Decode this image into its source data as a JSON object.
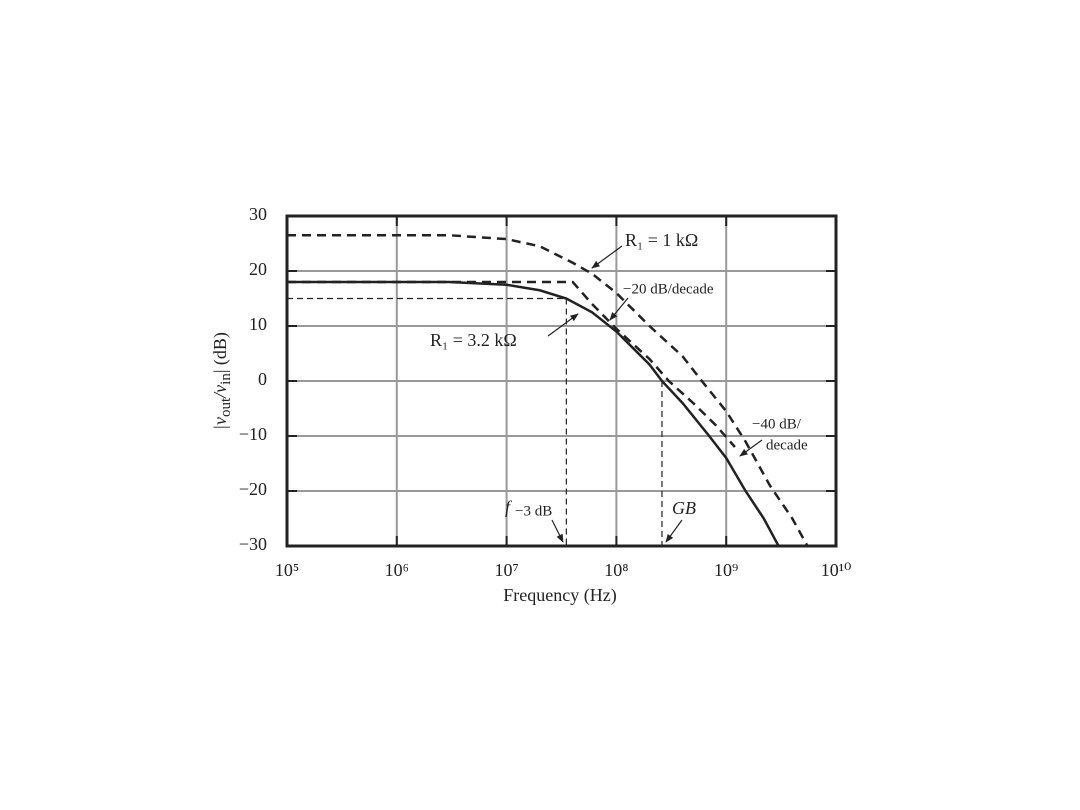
{
  "chart_data": {
    "type": "line",
    "xlabel": "Frequency (Hz)",
    "ylabel_parts": [
      "|v",
      "out",
      "/v",
      "in",
      "|  (dB)"
    ],
    "xscale": "log",
    "xlim": [
      100000,
      10000000000
    ],
    "xticks": [
      {
        "value": 100000,
        "label": "10⁵"
      },
      {
        "value": 1000000,
        "label": "10⁶"
      },
      {
        "value": 10000000,
        "label": "10⁷"
      },
      {
        "value": 100000000,
        "label": "10⁸"
      },
      {
        "value": 1000000000,
        "label": "10⁹"
      },
      {
        "value": 10000000000,
        "label": "10¹⁰"
      }
    ],
    "ylim": [
      -30,
      30
    ],
    "yticks": [
      {
        "value": -30,
        "label": "−30"
      },
      {
        "value": -20,
        "label": "−20"
      },
      {
        "value": -10,
        "label": "−10"
      },
      0,
      10,
      20,
      30
    ],
    "grid": true,
    "series": [
      {
        "color": "#222222",
        "dash": true,
        "x": [
          100000,
          3000000,
          10000000,
          20000000,
          40000000,
          60000000,
          100000000,
          200000000,
          400000000,
          600000000,
          1000000000,
          1500000000,
          2500000000,
          4000000000,
          5500000000
        ],
        "values": [
          26.5,
          26.5,
          25.8,
          24.5,
          21.5,
          19.5,
          16,
          10,
          4.5,
          0,
          -5.5,
          -11,
          -19,
          -25,
          -30
        ]
      },
      {
        "color": "#222222",
        "dash": true,
        "x": [
          100000,
          40000000,
          60000000,
          100000000,
          200000000,
          300000000,
          500000000,
          800000000,
          1200000000
        ],
        "values": [
          18,
          18,
          14,
          9.5,
          4,
          0,
          -4,
          -8,
          -12
        ]
      },
      {
        "color": "#222222",
        "dash": false,
        "x": [
          100000,
          3000000,
          10000000,
          20000000,
          35000000,
          60000000,
          100000000,
          200000000,
          260000000,
          400000000,
          700000000,
          1000000000,
          1500000000,
          2200000000,
          3000000000
        ],
        "values": [
          18,
          18,
          17.5,
          16.5,
          15,
          12.5,
          9,
          3,
          0,
          -4,
          -10,
          -14,
          -20,
          -25,
          -30
        ]
      }
    ],
    "f3db_x": 35000000,
    "f3db_level": 15,
    "gb_x": 260000000,
    "annotations": {
      "r1_1k": "R₁ = 1 kΩ",
      "slope20": "−20 dB/decade",
      "r1_32k": "R₁ = 3.2 kΩ",
      "slope40_a": "−40 dB/",
      "slope40_b": "decade",
      "f": "f",
      "f_sub": "−3 dB",
      "gb": "GB"
    }
  }
}
